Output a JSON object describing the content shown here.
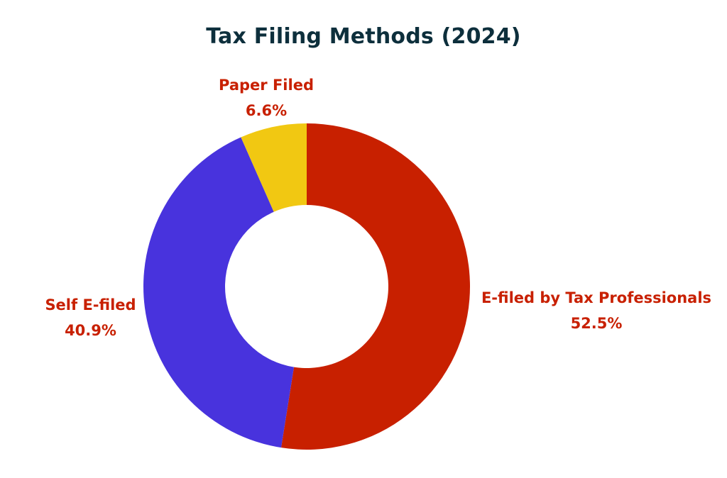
{
  "chart_data": {
    "type": "pie",
    "variant": "donut",
    "title": "Tax Filing Methods (2024)",
    "slices": [
      {
        "label": "E-filed by Tax Professionals",
        "value": 52.5,
        "value_label": "52.5%",
        "color": "#c82000"
      },
      {
        "label": "Self E-filed",
        "value": 40.9,
        "value_label": "40.9%",
        "color": "#4833dd"
      },
      {
        "label": "Paper Filed",
        "value": 6.6,
        "value_label": "6.6%",
        "color": "#f1c812"
      }
    ],
    "label_color": "#c82000",
    "start_angle": "12 o'clock, clockwise",
    "legend": "none"
  }
}
